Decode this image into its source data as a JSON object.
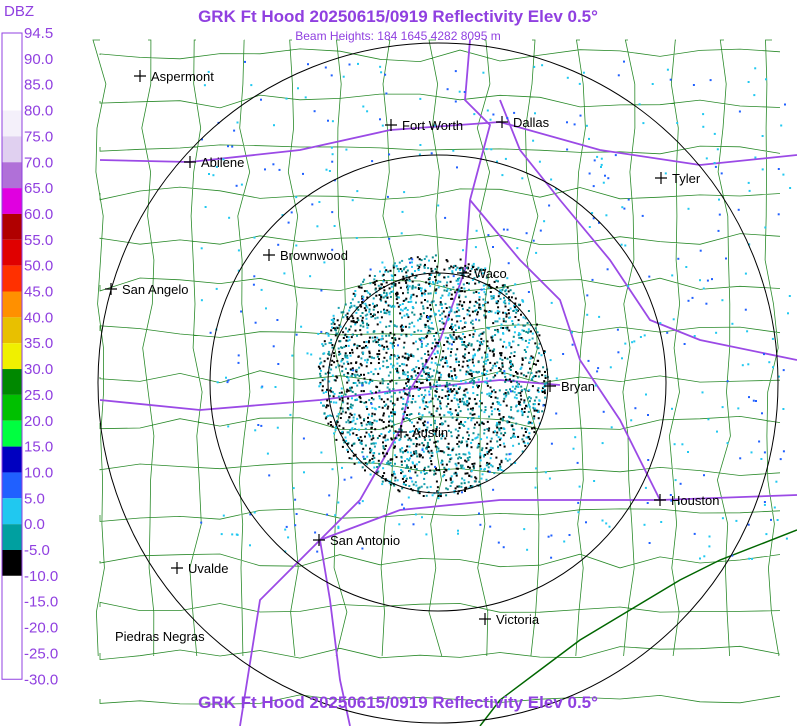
{
  "header": {
    "title": "GRK Ft Hood 20250615/0919 Reflectivity Elev 0.5°",
    "subtitle": "Beam Heights: 184 1645 4282 8095 m",
    "footer": "GRK Ft Hood 20250615/0919 Reflectivity Elev 0.5°"
  },
  "legend": {
    "title": "DBZ",
    "items": [
      {
        "label": "94.5",
        "color": "#ffffff"
      },
      {
        "label": "90.0",
        "color": "#ffffff"
      },
      {
        "label": "85.0",
        "color": "#ffffff"
      },
      {
        "label": "80.0",
        "color": "#f4f0fa"
      },
      {
        "label": "75.0",
        "color": "#e0d0f0"
      },
      {
        "label": "70.0",
        "color": "#b070d8"
      },
      {
        "label": "65.0",
        "color": "#e000e0"
      },
      {
        "label": "60.0",
        "color": "#b00000"
      },
      {
        "label": "55.0",
        "color": "#e00000"
      },
      {
        "label": "50.0",
        "color": "#ff3000"
      },
      {
        "label": "45.0",
        "color": "#ff9000"
      },
      {
        "label": "40.0",
        "color": "#e8c000"
      },
      {
        "label": "35.0",
        "color": "#f0f000"
      },
      {
        "label": "30.0",
        "color": "#008800"
      },
      {
        "label": "25.0",
        "color": "#00c000"
      },
      {
        "label": "20.0",
        "color": "#00ff40"
      },
      {
        "label": "15.0",
        "color": "#0000c0"
      },
      {
        "label": "10.0",
        "color": "#2060ff"
      },
      {
        "label": "5.0",
        "color": "#20c8f0"
      },
      {
        "label": "0.0",
        "color": "#00a0a0"
      },
      {
        "label": "-5.0",
        "color": "#000000"
      },
      {
        "label": "-10.0",
        "color": "#ffffff"
      },
      {
        "label": "-15.0",
        "color": "#ffffff"
      },
      {
        "label": "-20.0",
        "color": "#ffffff"
      },
      {
        "label": "-25.0",
        "color": "#ffffff"
      },
      {
        "label": "-30.0",
        "color": "#ffffff"
      }
    ]
  },
  "cities": [
    "Aspermont",
    "Fort Worth",
    "Dallas",
    "Abilene",
    "Tyler",
    "Brownwood",
    "Waco",
    "San Angelo",
    "Bryan",
    "Austin",
    "Houston",
    "San Antonio",
    "Uvalde",
    "Victoria",
    "Piedras Negras"
  ]
}
